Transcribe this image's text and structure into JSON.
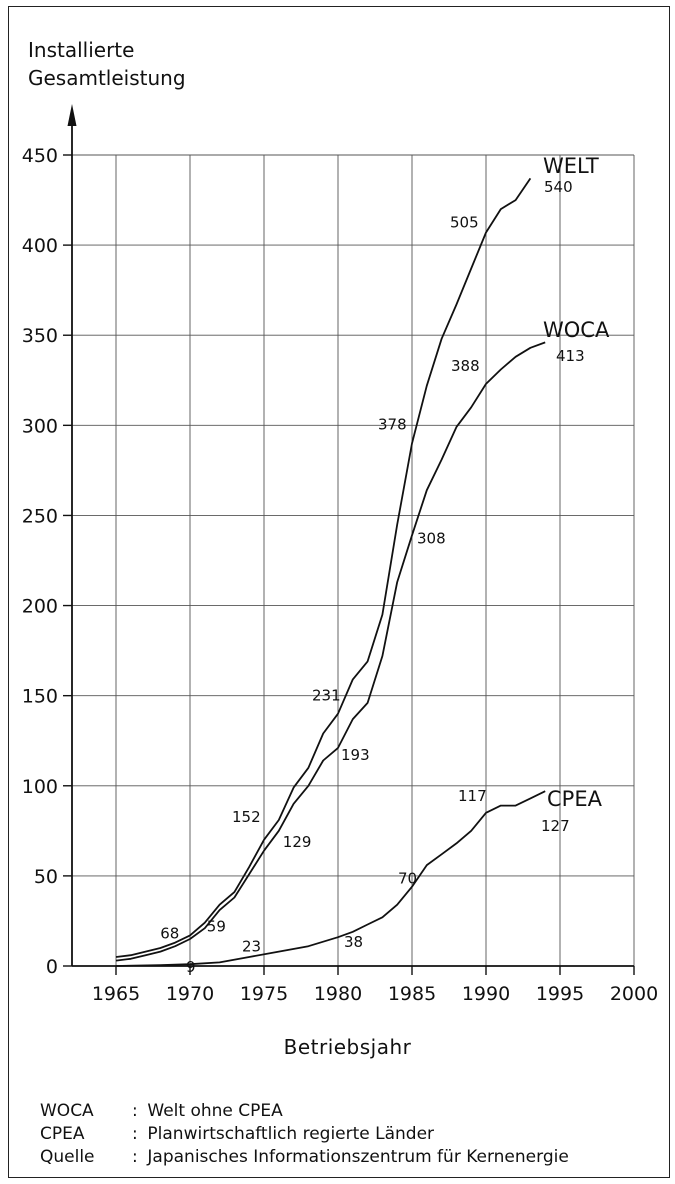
{
  "chart_data": {
    "type": "line",
    "ylabel_line1": "Installierte",
    "ylabel_line2": "Gesamtleistung",
    "xlabel": "Betriebsjahr",
    "xlim": [
      1962,
      2000
    ],
    "ylim": [
      0,
      450
    ],
    "xticks": [
      1965,
      1970,
      1975,
      1980,
      1985,
      1990,
      1995,
      2000
    ],
    "yticks": [
      0,
      50,
      100,
      150,
      200,
      250,
      300,
      350,
      400,
      450
    ],
    "grid": true,
    "series": [
      {
        "name": "WELT",
        "end_value": "540",
        "points": [
          [
            1965,
            5
          ],
          [
            1966,
            6
          ],
          [
            1967,
            8
          ],
          [
            1968,
            10
          ],
          [
            1969,
            13
          ],
          [
            1970,
            17
          ],
          [
            1971,
            24
          ],
          [
            1972,
            34
          ],
          [
            1973,
            41
          ],
          [
            1974,
            55
          ],
          [
            1975,
            70
          ],
          [
            1976,
            81
          ],
          [
            1977,
            99
          ],
          [
            1978,
            110
          ],
          [
            1979,
            129
          ],
          [
            1980,
            140
          ],
          [
            1981,
            159
          ],
          [
            1982,
            169
          ],
          [
            1983,
            195
          ],
          [
            1984,
            245
          ],
          [
            1985,
            290
          ],
          [
            1986,
            322
          ],
          [
            1987,
            348
          ],
          [
            1988,
            367
          ],
          [
            1989,
            387
          ],
          [
            1990,
            407
          ],
          [
            1991,
            420
          ],
          [
            1992,
            425
          ],
          [
            1993,
            437
          ]
        ]
      },
      {
        "name": "WOCA",
        "end_value": "413",
        "points": [
          [
            1965,
            3
          ],
          [
            1966,
            4
          ],
          [
            1967,
            6
          ],
          [
            1968,
            8
          ],
          [
            1969,
            11
          ],
          [
            1970,
            15
          ],
          [
            1971,
            21
          ],
          [
            1972,
            31
          ],
          [
            1973,
            38
          ],
          [
            1974,
            51
          ],
          [
            1975,
            64
          ],
          [
            1976,
            75
          ],
          [
            1977,
            90
          ],
          [
            1978,
            100
          ],
          [
            1979,
            114
          ],
          [
            1980,
            121
          ],
          [
            1981,
            137
          ],
          [
            1982,
            146
          ],
          [
            1983,
            172
          ],
          [
            1984,
            213
          ],
          [
            1985,
            239
          ],
          [
            1986,
            264
          ],
          [
            1987,
            281
          ],
          [
            1988,
            299
          ],
          [
            1989,
            310
          ],
          [
            1990,
            323
          ],
          [
            1991,
            331
          ],
          [
            1992,
            338
          ],
          [
            1993,
            343
          ],
          [
            1994,
            346
          ]
        ]
      },
      {
        "name": "CPEA",
        "end_value": "127",
        "points": [
          [
            1965,
            0
          ],
          [
            1968,
            0.5
          ],
          [
            1970,
            1
          ],
          [
            1972,
            2
          ],
          [
            1974,
            5
          ],
          [
            1976,
            8
          ],
          [
            1978,
            11
          ],
          [
            1980,
            16
          ],
          [
            1981,
            19
          ],
          [
            1982,
            23
          ],
          [
            1983,
            27
          ],
          [
            1984,
            34
          ],
          [
            1985,
            44
          ],
          [
            1986,
            56
          ],
          [
            1987,
            62
          ],
          [
            1988,
            68
          ],
          [
            1989,
            75
          ],
          [
            1990,
            85
          ],
          [
            1991,
            89
          ],
          [
            1992,
            89
          ],
          [
            1993,
            93
          ],
          [
            1994,
            97
          ]
        ]
      }
    ],
    "annotations": [
      {
        "text": "68",
        "x": 1969,
        "y": 13
      },
      {
        "text": "9",
        "x": 1970,
        "y": 1
      },
      {
        "text": "59",
        "x": 1971,
        "y": 24
      },
      {
        "text": "23",
        "x": 1975,
        "y": 7
      },
      {
        "text": "152",
        "x": 1975,
        "y": 70
      },
      {
        "text": "129",
        "x": 1976,
        "y": 75
      },
      {
        "text": "231",
        "x": 1980,
        "y": 140
      },
      {
        "text": "193",
        "x": 1980,
        "y": 121
      },
      {
        "text": "38",
        "x": 1980,
        "y": 16
      },
      {
        "text": "378",
        "x": 1985,
        "y": 290
      },
      {
        "text": "308",
        "x": 1985,
        "y": 239
      },
      {
        "text": "70",
        "x": 1985,
        "y": 44
      },
      {
        "text": "505",
        "x": 1990,
        "y": 407
      },
      {
        "text": "388",
        "x": 1990,
        "y": 323
      },
      {
        "text": "117",
        "x": 1990,
        "y": 85
      }
    ]
  },
  "legend_notes": [
    {
      "key": "WOCA",
      "text": "Welt ohne CPEA"
    },
    {
      "key": "CPEA",
      "text": "Planwirtschaftlich regierte Länder"
    },
    {
      "key": "Quelle",
      "text": "Japanisches Informationszentrum für Kernenergie"
    }
  ]
}
